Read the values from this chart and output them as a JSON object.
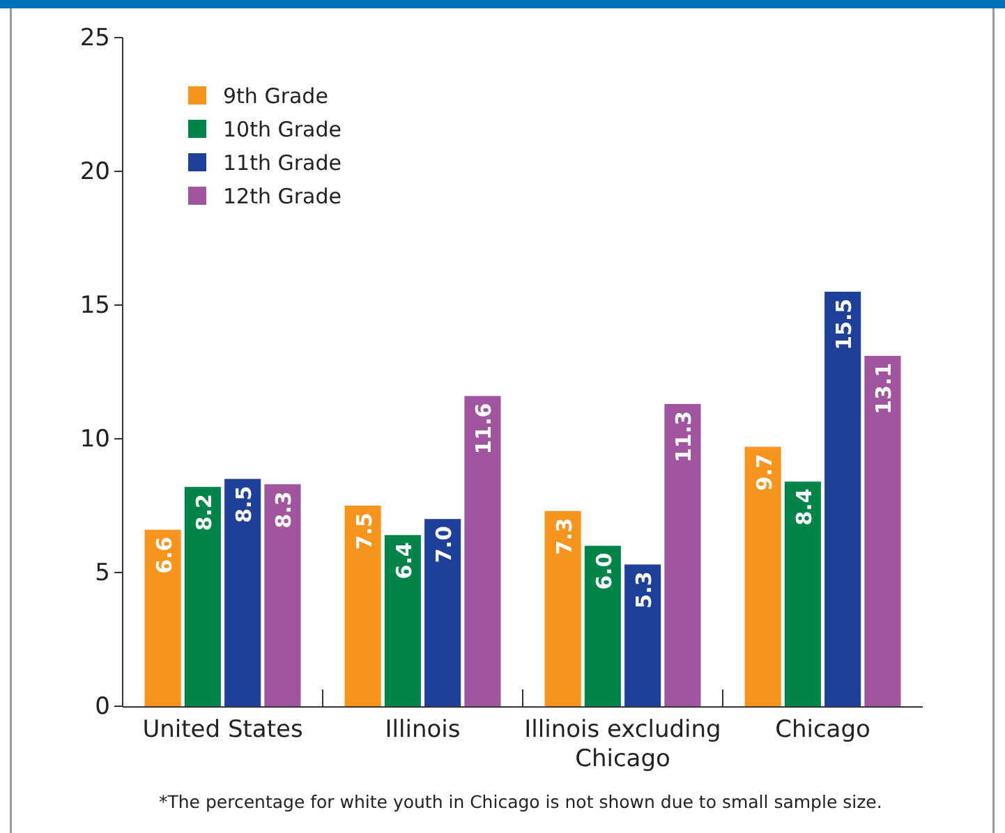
{
  "chart_data": {
    "type": "bar",
    "categories": [
      "United States",
      "Illinois",
      "Illinois excluding Chicago",
      "Chicago"
    ],
    "series": [
      {
        "name": "9th Grade",
        "color": "#f7941d",
        "values": [
          6.6,
          7.5,
          7.3,
          9.7
        ],
        "value_labels": [
          "6.6",
          "7.5",
          "7.3",
          "9.7"
        ]
      },
      {
        "name": "10th Grade",
        "color": "#00844a",
        "values": [
          8.2,
          6.4,
          6.0,
          8.4
        ],
        "value_labels": [
          "8.2",
          "6.4",
          "6.0",
          "8.4"
        ]
      },
      {
        "name": "11th Grade",
        "color": "#1f409a",
        "values": [
          8.5,
          7.0,
          5.3,
          15.5
        ],
        "value_labels": [
          "8.5",
          "7.0",
          "5.3",
          "15.5"
        ]
      },
      {
        "name": "12th Grade",
        "color": "#a2559f",
        "values": [
          8.3,
          11.6,
          11.3,
          13.1
        ],
        "value_labels": [
          "8.3",
          "11.6",
          "11.3",
          "13.1"
        ]
      }
    ],
    "ylim": [
      0,
      25
    ],
    "yticks": [
      0,
      5,
      10,
      15,
      20,
      25
    ],
    "grid": false,
    "legend": "top left",
    "annotations": [
      "*The percentage for white youth in Chicago is not shown due to small sample size."
    ]
  }
}
